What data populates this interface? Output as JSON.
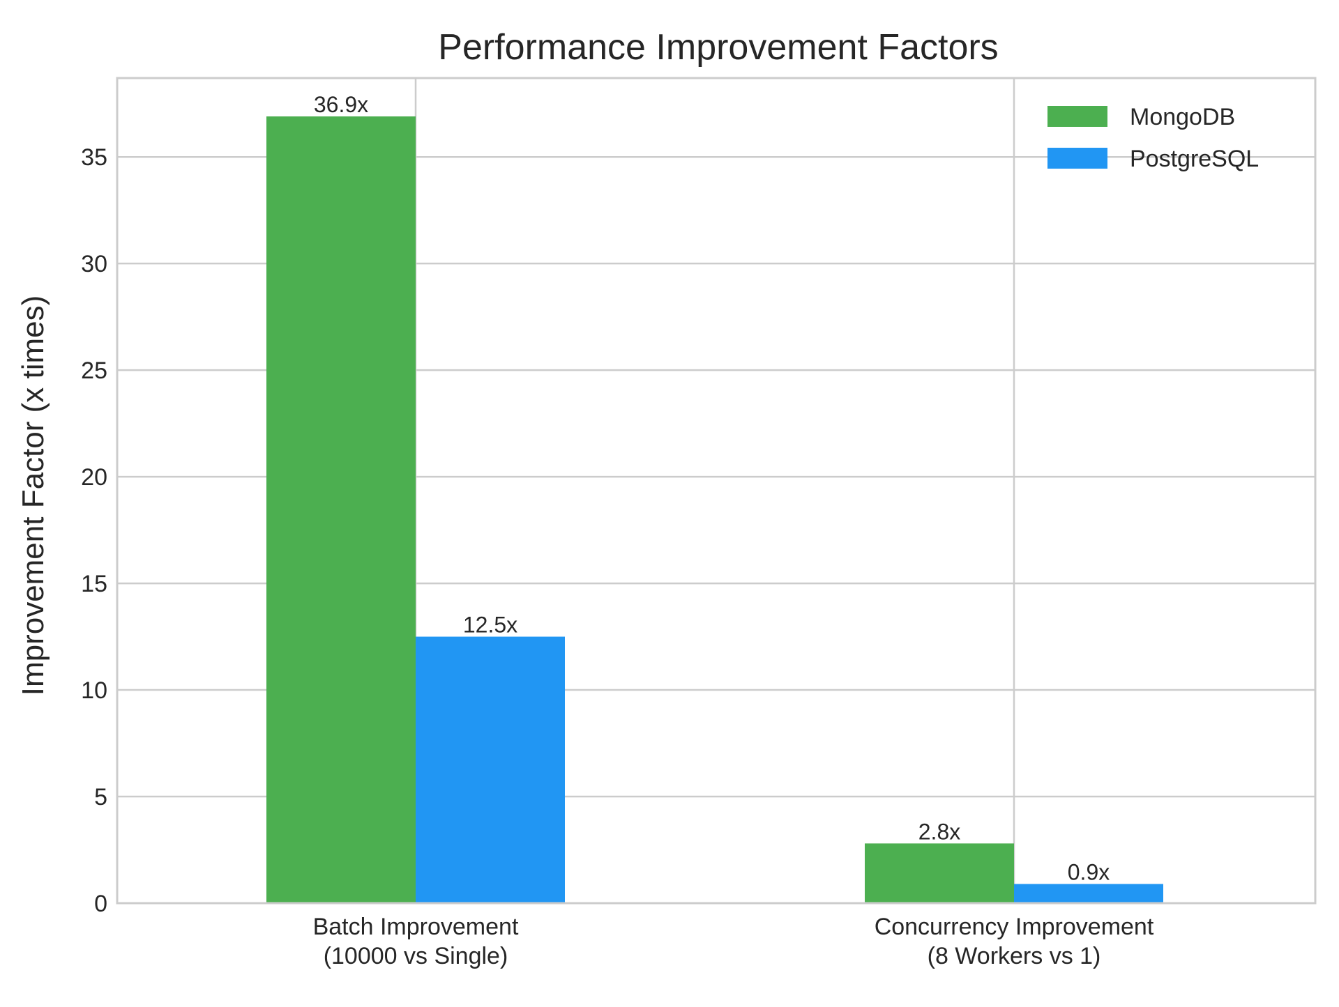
{
  "chart_data": {
    "type": "bar",
    "title": "Performance Improvement Factors",
    "xlabel": "",
    "ylabel": "Improvement Factor (x times)",
    "categories": [
      [
        "Batch Improvement",
        "(10000 vs Single)"
      ],
      [
        "Concurrency Improvement",
        "(8 Workers vs 1)"
      ]
    ],
    "series": [
      {
        "name": "MongoDB",
        "color": "#4caf50",
        "values": [
          36.9,
          2.8
        ],
        "labels": [
          "36.9x",
          "2.8x"
        ]
      },
      {
        "name": "PostgreSQL",
        "color": "#2196f3",
        "values": [
          12.5,
          0.9
        ],
        "labels": [
          "12.5x",
          "0.9x"
        ]
      }
    ],
    "ylim": [
      0,
      38.7
    ],
    "yticks": [
      0,
      5,
      10,
      15,
      20,
      25,
      30,
      35
    ],
    "grid": true,
    "legend_position": "top-right"
  }
}
